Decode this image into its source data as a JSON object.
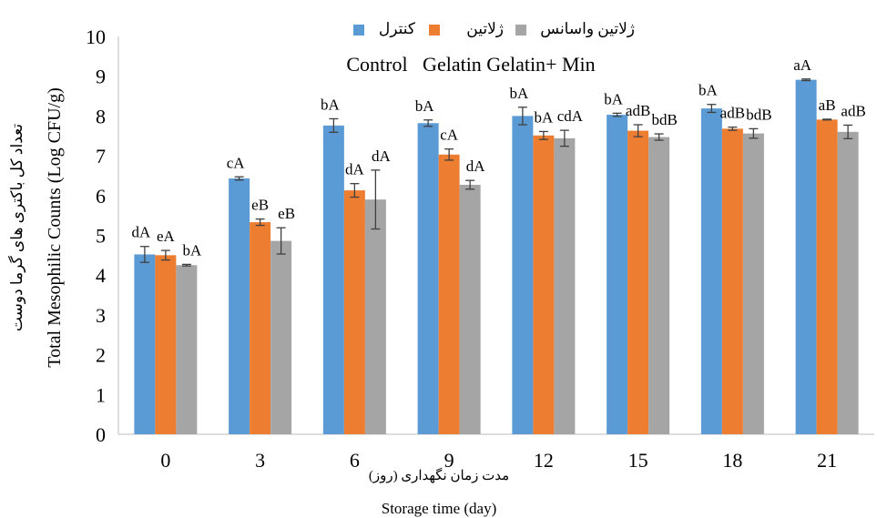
{
  "chart_data": {
    "type": "bar",
    "title": "",
    "categories": [
      "0",
      "3",
      "6",
      "9",
      "12",
      "15",
      "18",
      "21"
    ],
    "series": [
      {
        "name": "کنترل",
        "color": "#5b9bd5",
        "values": [
          4.52,
          6.43,
          7.76,
          7.82,
          8.0,
          8.03,
          8.19,
          8.91
        ],
        "errors": [
          0.2,
          0.04,
          0.17,
          0.08,
          0.22,
          0.04,
          0.1,
          0.02
        ],
        "labels": [
          "dA",
          "cA",
          "bA",
          "bA",
          "bA",
          "bA",
          "bA",
          "aA"
        ]
      },
      {
        "name": "ژلاتین",
        "color": "#ed7d31",
        "values": [
          4.5,
          5.33,
          6.13,
          7.03,
          7.51,
          7.63,
          7.68,
          7.91
        ],
        "errors": [
          0.12,
          0.08,
          0.17,
          0.14,
          0.1,
          0.15,
          0.04,
          0.01
        ],
        "labels": [
          "eA",
          "eB",
          "dA",
          "cA",
          "bA",
          "adB",
          "adB",
          "aB"
        ]
      },
      {
        "name": "ژلاتین واسانس",
        "color": "#a5a5a5",
        "values": [
          4.25,
          4.86,
          5.9,
          6.27,
          7.44,
          7.47,
          7.56,
          7.6
        ],
        "errors": [
          0.02,
          0.33,
          0.74,
          0.11,
          0.2,
          0.08,
          0.12,
          0.17
        ],
        "labels": [
          "bA",
          "eB",
          "dA",
          "dA",
          "cdA",
          "bdB",
          "bdB",
          "adB"
        ]
      }
    ],
    "legend_caption": "Control   Gelatin Gelatin+ Min",
    "legend_placement": "top",
    "xlabel": "Storage time (day)",
    "xlabel_fa": "مدت زمان نگهداری (روز)",
    "ylabel": "Total Mesophilic Counts (Log CFU/g)",
    "ylabel_fa": "تعداد کل باکتری های گرما دوست",
    "ylim": [
      0,
      10
    ],
    "yticks": [
      0,
      1,
      2,
      3,
      4,
      5,
      6,
      7,
      8,
      9,
      10
    ],
    "grid": false
  }
}
